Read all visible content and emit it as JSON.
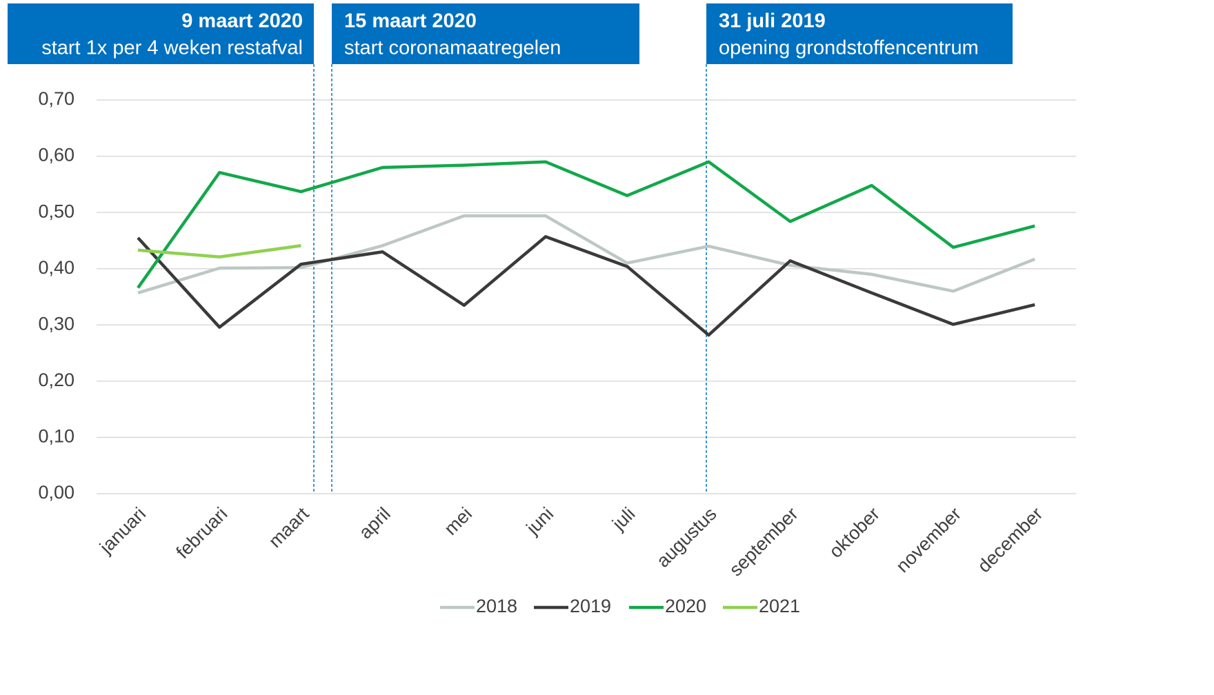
{
  "chart_data": {
    "type": "line",
    "annotations": [
      {
        "title": "9 maart 2020",
        "text": "start 1x per 4 weken restafval"
      },
      {
        "title": "15 maart 2020",
        "text": "start coronamaatregelen"
      },
      {
        "title": "31 juli 2019",
        "text": "opening grondstoffencentrum"
      }
    ],
    "annotation_color": "#0070c0",
    "categories": [
      "januari",
      "februari",
      "maart",
      "april",
      "mei",
      "juni",
      "juli",
      "augustus",
      "september",
      "oktober",
      "november",
      "december"
    ],
    "series": [
      {
        "name": "2018",
        "color": "#bdc8c3",
        "values": [
          0.357,
          0.401,
          0.402,
          0.441,
          0.494,
          0.494,
          0.41,
          0.44,
          0.406,
          0.39,
          0.36,
          0.417
        ]
      },
      {
        "name": "2019",
        "color": "#3a3a3a",
        "values": [
          0.455,
          0.296,
          0.408,
          0.43,
          0.335,
          0.457,
          0.404,
          0.282,
          0.414,
          0.357,
          0.301,
          0.336
        ]
      },
      {
        "name": "2020",
        "color": "#12a84a",
        "values": [
          0.366,
          0.571,
          0.537,
          0.58,
          0.584,
          0.59,
          0.53,
          0.59,
          0.484,
          0.548,
          0.438,
          0.476
        ]
      },
      {
        "name": "2021",
        "color": "#8fd14f",
        "values": [
          0.433,
          0.421,
          0.441,
          null,
          null,
          null,
          null,
          null,
          null,
          null,
          null,
          null
        ]
      }
    ],
    "ylim": [
      0,
      0.7
    ],
    "yticks": [
      {
        "value": 0,
        "label": "0,00"
      },
      {
        "value": 0.1,
        "label": "0,10"
      },
      {
        "value": 0.2,
        "label": "0,20"
      },
      {
        "value": 0.3,
        "label": "0,30"
      },
      {
        "value": 0.4,
        "label": "0,40"
      },
      {
        "value": 0.5,
        "label": "0,50"
      },
      {
        "value": 0.6,
        "label": "0,60"
      },
      {
        "value": 0.7,
        "label": "0,70"
      }
    ],
    "grid": true,
    "legend": "bottom"
  }
}
